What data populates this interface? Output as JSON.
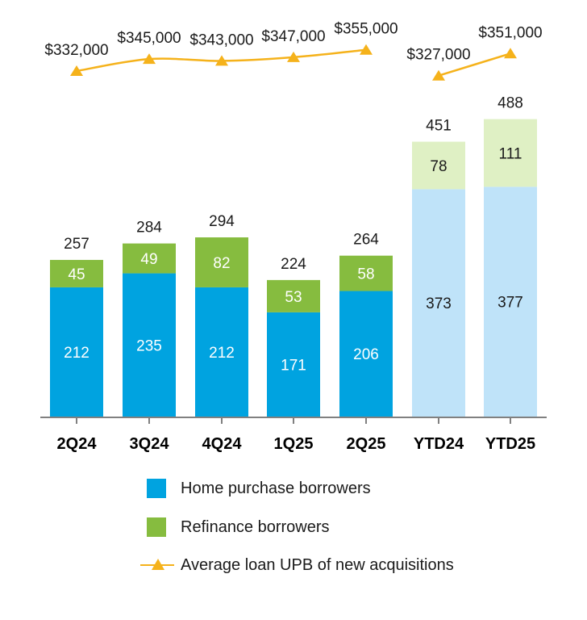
{
  "chart_data": {
    "type": "bar",
    "stacked": true,
    "categories": [
      "2Q24",
      "3Q24",
      "4Q24",
      "1Q25",
      "2Q25",
      "YTD24",
      "YTD25"
    ],
    "series": [
      {
        "name": "Home purchase borrowers",
        "values": [
          212,
          235,
          212,
          171,
          206,
          373,
          377
        ],
        "color": "#00a3e0",
        "ytd_color": "#bfe3f9"
      },
      {
        "name": "Refinance borrowers",
        "values": [
          45,
          49,
          82,
          53,
          58,
          78,
          111
        ],
        "color": "#86bc3f",
        "ytd_color": "#dff0c4"
      }
    ],
    "totals": [
      257,
      284,
      294,
      224,
      264,
      451,
      488
    ],
    "line_series": {
      "name": "Average loan UPB of new acquisitions",
      "values": [
        332000,
        345000,
        343000,
        347000,
        355000,
        327000,
        351000
      ],
      "labels": [
        "$332,000",
        "$345,000",
        "$343,000",
        "$347,000",
        "$355,000",
        "$327,000",
        "$351,000"
      ],
      "color": "#f5b21b",
      "segments": [
        [
          0,
          4
        ],
        [
          5,
          6
        ]
      ]
    },
    "ylim": [
      0,
      500
    ],
    "title": "",
    "xlabel": "",
    "ylabel": ""
  },
  "legend": {
    "items": [
      {
        "label": "Home purchase borrowers",
        "color": "#00a3e0"
      },
      {
        "label": "Refinance borrowers",
        "color": "#86bc3f"
      },
      {
        "label": "Average loan UPB of new acquisitions",
        "color": "#f5b21b"
      }
    ]
  }
}
